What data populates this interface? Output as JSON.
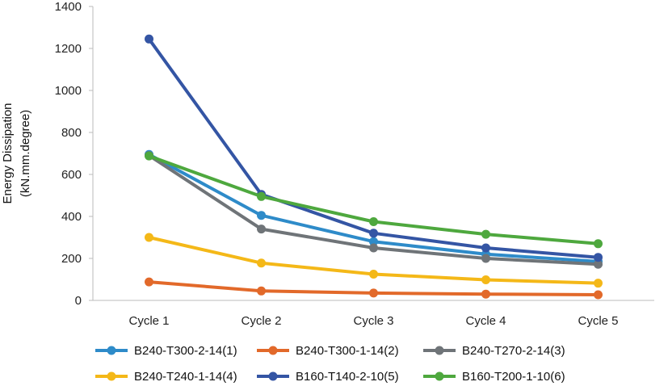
{
  "chart_data": {
    "type": "line",
    "categories": [
      "Cycle 1",
      "Cycle 2",
      "Cycle 3",
      "Cycle 4",
      "Cycle 5"
    ],
    "ylabel": [
      "Energy Dissipation",
      "(kN.mm.degree)"
    ],
    "ylim": [
      0,
      1400
    ],
    "yticks": [
      0,
      200,
      400,
      600,
      800,
      1000,
      1200,
      1400
    ],
    "grid": false,
    "legend_position": "bottom",
    "series": [
      {
        "name": "B240-T300-2-14(1)",
        "color": "#2E8BC9",
        "values": [
          695,
          405,
          280,
          220,
          185
        ]
      },
      {
        "name": "B240-T300-1-14(2)",
        "color": "#E2692A",
        "values": [
          88,
          45,
          35,
          30,
          27
        ]
      },
      {
        "name": "B240-T270-2-14(3)",
        "color": "#6F7478",
        "values": [
          690,
          340,
          250,
          200,
          172
        ]
      },
      {
        "name": "B240-T240-1-14(4)",
        "color": "#F4B818",
        "values": [
          300,
          178,
          125,
          98,
          82
        ]
      },
      {
        "name": "B160-T140-2-10(5)",
        "color": "#3455A4",
        "values": [
          1245,
          505,
          320,
          250,
          205
        ]
      },
      {
        "name": "B160-T200-1-10(6)",
        "color": "#4EA83E",
        "values": [
          688,
          495,
          375,
          315,
          270
        ]
      }
    ]
  }
}
